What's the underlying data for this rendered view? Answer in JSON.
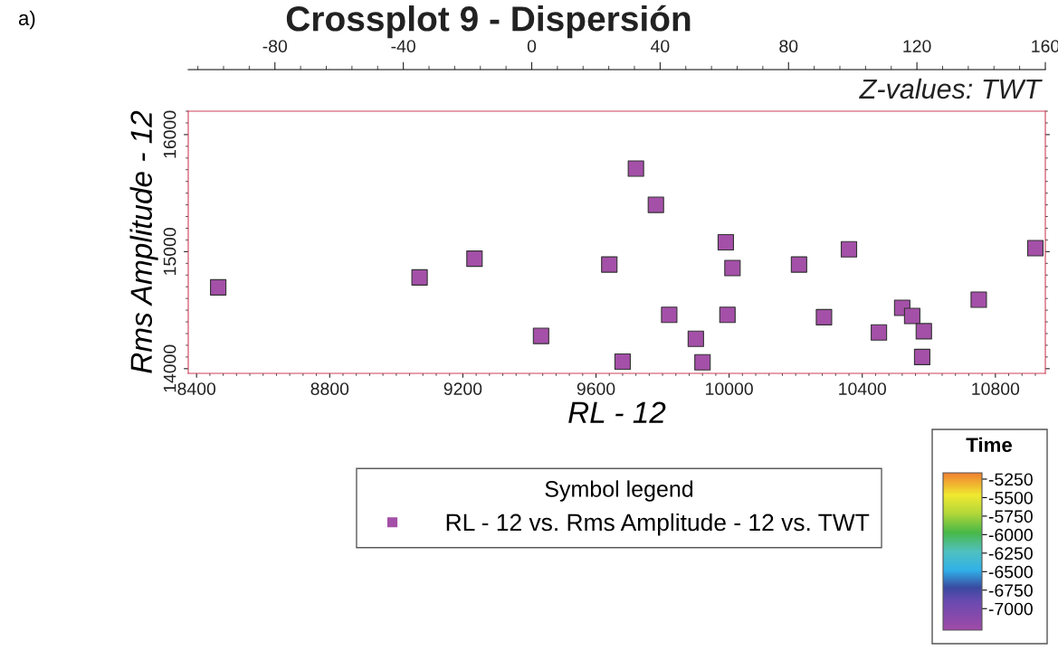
{
  "chart_data": {
    "type": "scatter",
    "title": "Crossplot 9 - Dispersión",
    "xlabel": "RL - 12",
    "ylabel": "Rms Amplitude - 12",
    "clabel": "Time",
    "legend_title": "Symbol legend",
    "annotations": [
      "a)",
      "Z-values: TWT"
    ],
    "x": [
      8465,
      9070,
      9235,
      9435,
      9640,
      9680,
      9720,
      9780,
      9820,
      9900,
      9920,
      9990,
      9995,
      10010,
      10210,
      10285,
      10360,
      10450,
      10520,
      10550,
      10585,
      10580,
      10750,
      10920
    ],
    "series": [
      {
        "name": "RL - 12 vs. Rms Amplitude - 12 vs. TWT",
        "color": "#a450a8",
        "values": [
          14695,
          14780,
          14940,
          14280,
          14890,
          14060,
          15710,
          15400,
          14460,
          14255,
          14055,
          15080,
          14460,
          14860,
          14890,
          14440,
          15020,
          14310,
          14520,
          14450,
          14320,
          14100,
          14590,
          15030
        ]
      }
    ],
    "xlim": [
      8375,
      10950
    ],
    "xticks": [
      8400,
      8800,
      9200,
      9600,
      10000,
      10400,
      10800
    ],
    "ylim": [
      13960,
      16200
    ],
    "yticks": [
      14000,
      15000,
      16000
    ],
    "x2lim": [
      -107,
      160
    ],
    "x2ticks": [
      -80,
      -40,
      0,
      40,
      80,
      120,
      160
    ],
    "clim": [
      -7290,
      -5165
    ],
    "cticks": [
      -5250,
      -5500,
      -5750,
      -6000,
      -6250,
      -6500,
      -6750,
      -7000
    ],
    "marker": "square",
    "grid": false,
    "legend": "bottom"
  }
}
